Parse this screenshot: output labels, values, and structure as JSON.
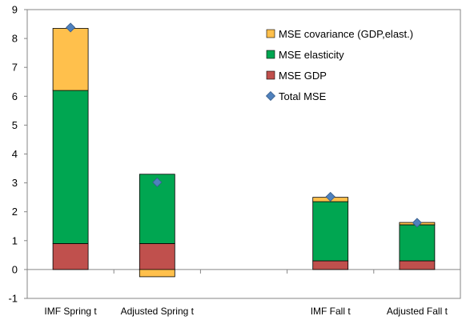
{
  "chart_data": {
    "type": "bar",
    "stacked": true,
    "categories": [
      "IMF Spring t",
      "Adjusted Spring t",
      "",
      "IMF Fall t",
      "Adjusted Fall t"
    ],
    "ylim": [
      -1,
      9
    ],
    "yticks": [
      -1,
      0,
      1,
      2,
      3,
      4,
      5,
      6,
      7,
      8,
      9
    ],
    "grid": false,
    "legend_position": "top-right",
    "series": [
      {
        "name": "MSE GDP",
        "kind": "bar",
        "color": "#C0504D",
        "values": [
          0.9,
          0.9,
          null,
          0.3,
          0.3
        ]
      },
      {
        "name": "MSE elasticity",
        "kind": "bar",
        "color": "#00A651",
        "values": [
          5.3,
          2.4,
          null,
          2.05,
          1.25
        ]
      },
      {
        "name": "MSE covariance (GDP,elast.)",
        "kind": "bar",
        "color": "#FFC04C",
        "values": [
          2.15,
          -0.25,
          null,
          0.15,
          0.08
        ]
      },
      {
        "name": "Total MSE",
        "kind": "marker",
        "color": "#4F81BD",
        "values": [
          8.38,
          3.02,
          null,
          2.52,
          1.62
        ]
      }
    ],
    "legend_order": [
      "MSE covariance (GDP,elast.)",
      "MSE elasticity",
      "MSE GDP",
      "Total MSE"
    ]
  }
}
